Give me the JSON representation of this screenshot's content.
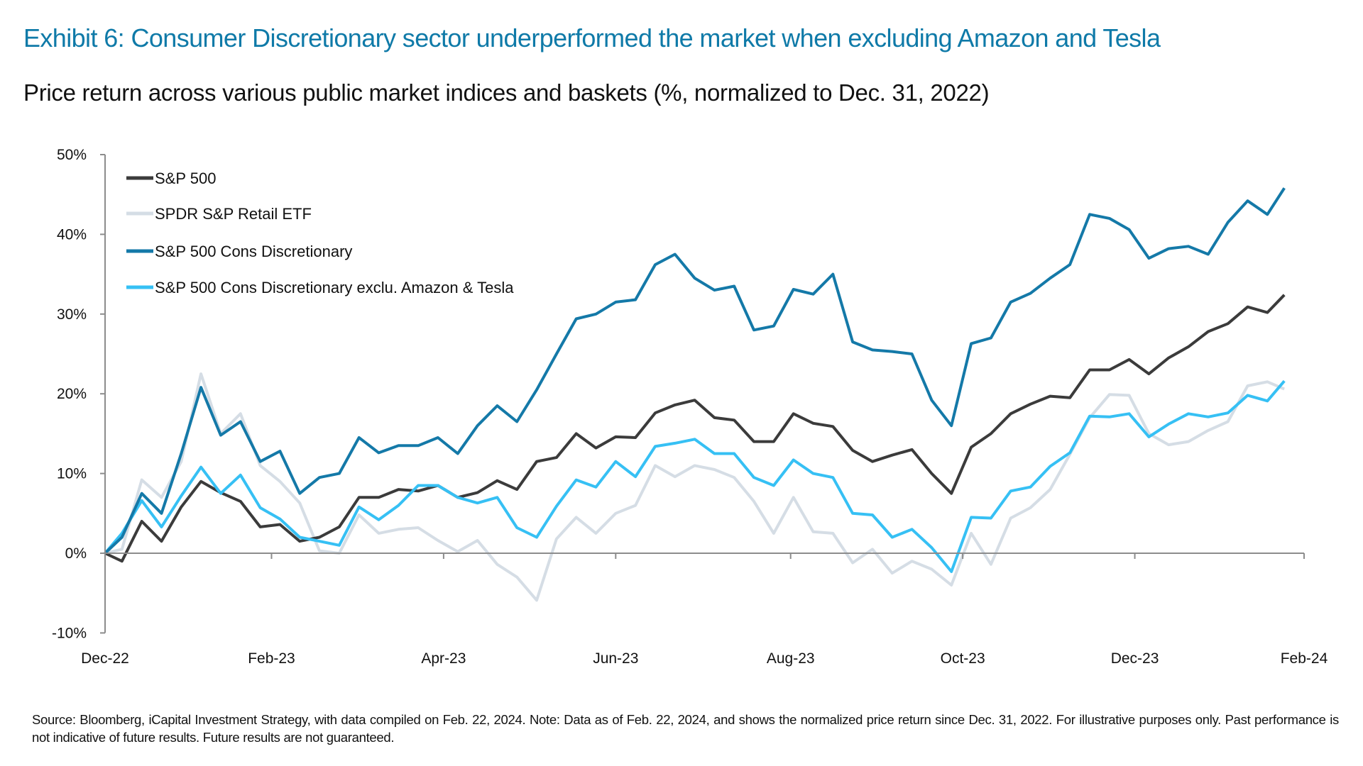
{
  "title": "Exhibit 6: Consumer Discretionary sector underperformed the market when excluding Amazon and Tesla",
  "subtitle": "Price return across various public market indices and baskets (%, normalized to Dec. 31, 2022)",
  "footnote": "Source: Bloomberg, iCapital Investment Strategy, with data compiled on Feb. 22, 2024. Note: Data as of Feb. 22, 2024, and shows the normalized price return since Dec. 31, 2022. For illustrative purposes only. Past performance is not indicative of future results. Future results are not guaranteed.",
  "colors": {
    "title": "#0f7aa8",
    "axis": "#8c8c8c"
  },
  "chart_data": {
    "type": "line",
    "title": "",
    "xlabel": "",
    "ylabel": "",
    "ylim": [
      -10,
      50
    ],
    "yticks": [
      -10,
      0,
      10,
      20,
      30,
      40,
      50
    ],
    "ytick_labels": [
      "-10%",
      "0%",
      "10%",
      "20%",
      "30%",
      "40%",
      "50%"
    ],
    "xlim": [
      "2022-12-31",
      "2024-02-29"
    ],
    "xticks": [
      "2022-12-31",
      "2023-02-28",
      "2023-04-30",
      "2023-06-30",
      "2023-08-31",
      "2023-10-31",
      "2023-12-31",
      "2024-02-29"
    ],
    "xtick_labels": [
      "Dec-22",
      "Feb-23",
      "Apr-23",
      "Jun-23",
      "Aug-23",
      "Oct-23",
      "Dec-23",
      "Feb-24"
    ],
    "grid": false,
    "legend_position": "top-left",
    "x": [
      "2022-12-31",
      "2023-01-06",
      "2023-01-13",
      "2023-01-20",
      "2023-01-27",
      "2023-02-03",
      "2023-02-10",
      "2023-02-17",
      "2023-02-24",
      "2023-03-03",
      "2023-03-10",
      "2023-03-17",
      "2023-03-24",
      "2023-03-31",
      "2023-04-07",
      "2023-04-14",
      "2023-04-21",
      "2023-04-28",
      "2023-05-05",
      "2023-05-12",
      "2023-05-19",
      "2023-05-26",
      "2023-06-02",
      "2023-06-09",
      "2023-06-16",
      "2023-06-23",
      "2023-06-30",
      "2023-07-07",
      "2023-07-14",
      "2023-07-21",
      "2023-07-28",
      "2023-08-04",
      "2023-08-11",
      "2023-08-18",
      "2023-08-25",
      "2023-09-01",
      "2023-09-08",
      "2023-09-15",
      "2023-09-22",
      "2023-09-29",
      "2023-10-06",
      "2023-10-13",
      "2023-10-20",
      "2023-10-27",
      "2023-11-03",
      "2023-11-10",
      "2023-11-17",
      "2023-11-24",
      "2023-12-01",
      "2023-12-08",
      "2023-12-15",
      "2023-12-22",
      "2023-12-29",
      "2024-01-05",
      "2024-01-12",
      "2024-01-19",
      "2024-01-26",
      "2024-02-02",
      "2024-02-09",
      "2024-02-16",
      "2024-02-22"
    ],
    "series": [
      {
        "name": "SPDR S&P Retail ETF",
        "color": "#d5dde5",
        "values": [
          0,
          0.5,
          9.2,
          7.0,
          11.5,
          22.5,
          15.0,
          17.5,
          11.0,
          9.0,
          6.3,
          0.3,
          0.0,
          4.8,
          2.5,
          3.0,
          3.2,
          1.6,
          0.2,
          1.6,
          -1.4,
          -3.0,
          -5.9,
          1.8,
          4.5,
          2.5,
          5.0,
          6.0,
          11.0,
          9.6,
          11.0,
          10.5,
          9.5,
          6.5,
          2.5,
          7.0,
          2.7,
          2.5,
          -1.2,
          0.5,
          -2.5,
          -1.0,
          -2.0,
          -4.0,
          2.5,
          -1.4,
          4.4,
          5.7,
          8.0,
          12.4,
          17.0,
          19.9,
          19.8,
          15.0,
          13.6,
          14.0,
          15.4,
          16.5,
          21.0,
          21.5,
          20.6
        ]
      },
      {
        "name": "S&P 500",
        "color": "#3b3b3b",
        "values": [
          0,
          -1.0,
          4.0,
          1.5,
          5.8,
          9.0,
          7.6,
          6.5,
          3.3,
          3.6,
          1.5,
          2.0,
          3.3,
          7.0,
          7.0,
          8.0,
          7.8,
          8.5,
          7.0,
          7.6,
          9.1,
          8.0,
          11.5,
          12.0,
          15.0,
          13.2,
          14.6,
          14.5,
          17.6,
          18.6,
          19.2,
          17.0,
          16.7,
          14.0,
          14.0,
          17.5,
          16.3,
          15.9,
          12.9,
          11.5,
          12.3,
          13.0,
          10.0,
          7.5,
          13.3,
          15.0,
          17.5,
          18.7,
          19.7,
          19.5,
          23.0,
          23.0,
          24.3,
          22.5,
          24.5,
          25.9,
          27.8,
          28.8,
          30.9,
          30.2,
          32.4
        ]
      },
      {
        "name": "S&P 500 Cons Discretionary exclu. Amazon & Tesla",
        "color": "#36c0f4",
        "values": [
          0,
          2.5,
          6.6,
          3.3,
          7.2,
          10.8,
          7.5,
          9.8,
          5.7,
          4.3,
          2.0,
          1.5,
          1.0,
          5.8,
          4.2,
          6.0,
          8.5,
          8.5,
          7.0,
          6.3,
          7.0,
          3.2,
          2.0,
          5.9,
          9.2,
          8.3,
          11.5,
          9.6,
          13.4,
          13.8,
          14.3,
          12.5,
          12.5,
          9.5,
          8.5,
          11.7,
          10.0,
          9.5,
          5.0,
          4.8,
          2.0,
          3.0,
          0.7,
          -2.3,
          4.5,
          4.4,
          7.8,
          8.3,
          10.9,
          12.6,
          17.2,
          17.1,
          17.5,
          14.6,
          16.2,
          17.5,
          17.1,
          17.6,
          19.8,
          19.1,
          21.6
        ]
      },
      {
        "name": "S&P 500 Cons Discretionary",
        "color": "#1479a8",
        "values": [
          0,
          2.0,
          7.5,
          5.0,
          12.5,
          20.8,
          14.8,
          16.5,
          11.5,
          12.8,
          7.5,
          9.5,
          10.0,
          14.5,
          12.6,
          13.5,
          13.5,
          14.5,
          12.5,
          16.0,
          18.5,
          16.5,
          20.5,
          25.0,
          29.4,
          30.0,
          31.5,
          31.8,
          36.2,
          37.5,
          34.5,
          33.0,
          33.5,
          28.0,
          28.5,
          33.1,
          32.5,
          35.0,
          26.5,
          25.5,
          25.3,
          25.0,
          19.2,
          16.0,
          26.3,
          27.0,
          31.5,
          32.6,
          34.5,
          36.2,
          42.5,
          42.0,
          40.6,
          37.0,
          38.2,
          38.5,
          37.5,
          41.5,
          44.2,
          42.5,
          45.8
        ]
      }
    ],
    "legend_order": [
      "S&P 500",
      "SPDR S&P Retail ETF",
      "S&P 500 Cons Discretionary",
      "S&P 500 Cons Discretionary exclu. Amazon & Tesla"
    ]
  }
}
